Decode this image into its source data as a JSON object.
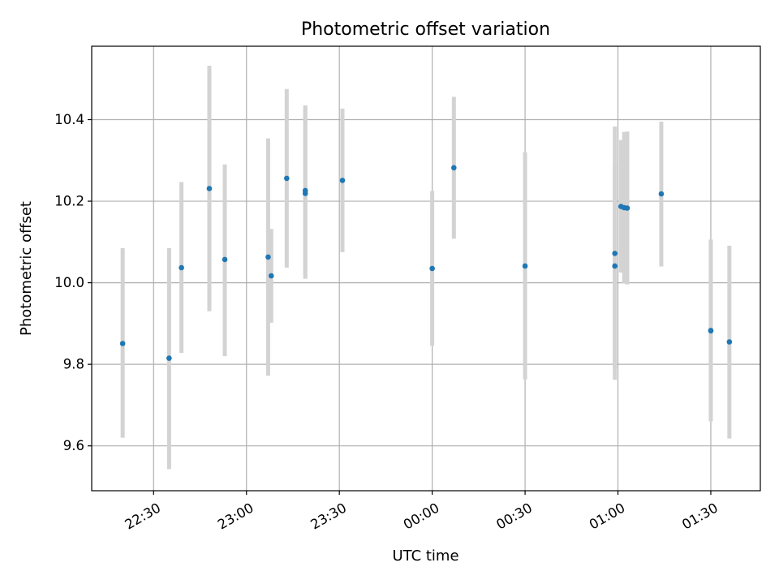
{
  "chart_data": {
    "type": "scatter",
    "title": "Photometric offset variation",
    "xlabel": "UTC time",
    "ylabel": "Photometric offset",
    "xlim": [
      "22:10",
      "01:46"
    ],
    "ylim": [
      9.49,
      10.58
    ],
    "x_ticks": [
      "22:30",
      "23:00",
      "23:30",
      "00:00",
      "00:30",
      "01:00",
      "01:30"
    ],
    "y_ticks": [
      "9.6",
      "9.8",
      "10.0",
      "10.2",
      "10.4"
    ],
    "grid": true,
    "legend": "none",
    "colors": {
      "points": "#1f77b4",
      "error_bars": "#d3d3d3",
      "grid": "#b0b0b0"
    },
    "series": [
      {
        "points": [
          {
            "x": "22:20",
            "y": 9.851,
            "err_low": 9.62,
            "err_high": 10.085
          },
          {
            "x": "22:35",
            "y": 9.815,
            "err_low": 9.543,
            "err_high": 10.085
          },
          {
            "x": "22:39",
            "y": 10.037,
            "err_low": 9.828,
            "err_high": 10.247
          },
          {
            "x": "22:48",
            "y": 10.231,
            "err_low": 9.93,
            "err_high": 10.532
          },
          {
            "x": "22:53",
            "y": 10.057,
            "err_low": 9.82,
            "err_high": 10.29
          },
          {
            "x": "23:07",
            "y": 10.063,
            "err_low": 9.772,
            "err_high": 10.354
          },
          {
            "x": "23:08",
            "y": 10.017,
            "err_low": 9.902,
            "err_high": 10.132
          },
          {
            "x": "23:13",
            "y": 10.256,
            "err_low": 10.037,
            "err_high": 10.475
          },
          {
            "x": "23:19",
            "y": 10.226,
            "err_low": 10.018,
            "err_high": 10.435
          },
          {
            "x": "23:19",
            "y": 10.219,
            "err_low": 10.01,
            "err_high": 10.428
          },
          {
            "x": "23:31",
            "y": 10.251,
            "err_low": 10.075,
            "err_high": 10.427
          },
          {
            "x": "00:00",
            "y": 10.035,
            "err_low": 9.845,
            "err_high": 10.225
          },
          {
            "x": "00:07",
            "y": 10.282,
            "err_low": 10.108,
            "err_high": 10.456
          },
          {
            "x": "00:30",
            "y": 10.041,
            "err_low": 9.763,
            "err_high": 10.32
          },
          {
            "x": "00:59",
            "y": 10.072,
            "err_low": 9.762,
            "err_high": 10.383
          },
          {
            "x": "00:59",
            "y": 10.041,
            "err_low": 9.79,
            "err_high": 10.29
          },
          {
            "x": "01:01",
            "y": 10.187,
            "err_low": 10.025,
            "err_high": 10.35
          },
          {
            "x": "01:02",
            "y": 10.184,
            "err_low": 9.998,
            "err_high": 10.37
          },
          {
            "x": "01:03",
            "y": 10.183,
            "err_low": 9.996,
            "err_high": 10.371
          },
          {
            "x": "01:14",
            "y": 10.218,
            "err_low": 10.04,
            "err_high": 10.395
          },
          {
            "x": "01:30",
            "y": 9.883,
            "err_low": 9.66,
            "err_high": 10.106
          },
          {
            "x": "01:30",
            "y": 9.882,
            "err_low": 9.661,
            "err_high": 10.104
          },
          {
            "x": "01:36",
            "y": 9.855,
            "err_low": 9.618,
            "err_high": 10.091
          }
        ]
      }
    ]
  }
}
